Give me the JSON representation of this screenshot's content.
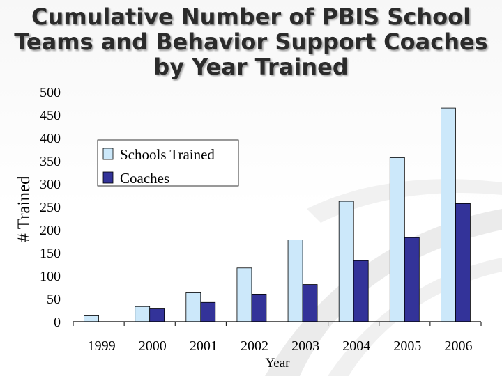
{
  "chart_data": {
    "type": "bar",
    "title": "Cumulative Number of PBIS School Teams and Behavior Support Coaches by Year Trained",
    "xlabel": "Year",
    "ylabel": "# Trained",
    "ylim": [
      0,
      500
    ],
    "yticks": [
      0,
      50,
      100,
      150,
      200,
      250,
      300,
      350,
      400,
      450,
      500
    ],
    "categories": [
      "1999",
      "2000",
      "2001",
      "2002",
      "2003",
      "2004",
      "2005",
      "2006"
    ],
    "series": [
      {
        "name": "Schools Trained",
        "color": "#cce8fa",
        "values": [
          13,
          33,
          63,
          117,
          178,
          262,
          357,
          465
        ]
      },
      {
        "name": "Coaches",
        "color": "#333399",
        "values": [
          0,
          28,
          42,
          60,
          81,
          133,
          183,
          257
        ]
      }
    ],
    "grid": false,
    "legend": "upper-left"
  }
}
